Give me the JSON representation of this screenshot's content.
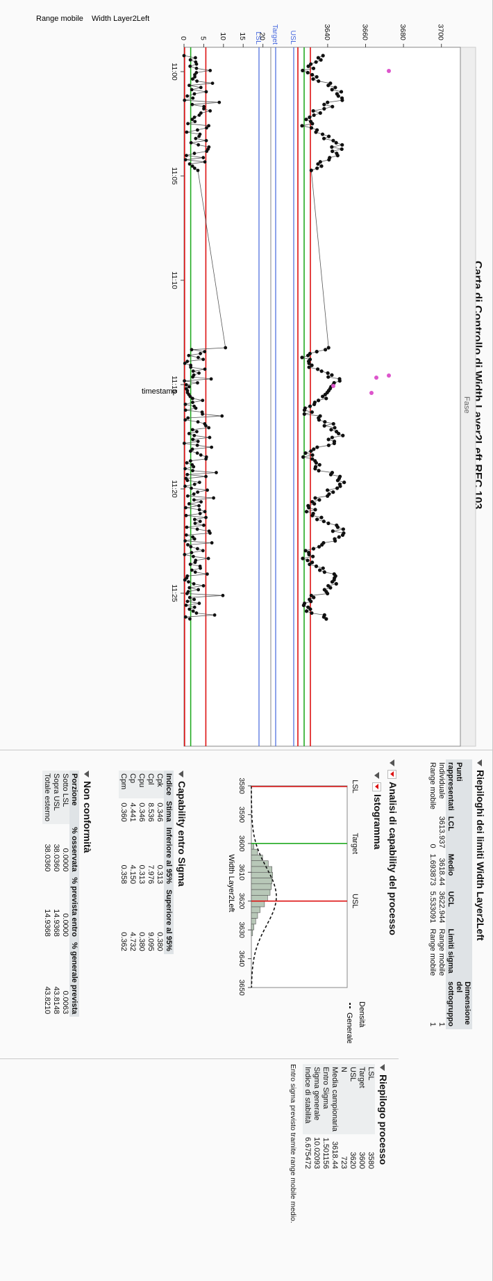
{
  "title": "Carta di Controllo di Width Layer2Left REC 103",
  "top_plot": {
    "label": "Width Layer2Left",
    "yticks": [
      "3640",
      "3660",
      "3680",
      "3700"
    ],
    "ref_labels": {
      "lsl": "LSL",
      "target": "Target",
      "usl": "USL"
    },
    "phase_label": "Fase"
  },
  "bottom_plot": {
    "label": "Range mobile",
    "yticks": [
      "0",
      "5",
      "10",
      "15",
      "20"
    ]
  },
  "x_axis": {
    "label": "timestamp",
    "ticks": [
      "11:00",
      "11:05",
      "11:10",
      "11:15",
      "11:20",
      "11:25"
    ]
  },
  "colors": {
    "ucl_lcl": "#dd1111",
    "center": "#22aa22",
    "spec": "#4466dd",
    "point": "#111111",
    "alarm": "#dd55cc"
  },
  "limits_summary": {
    "title": "Riepiloghi dei limiti Width Layer2Left",
    "headers": [
      "Punti rappresentati",
      "LCL",
      "Medio",
      "UCL",
      "Limiti sigma",
      "Dimensione del sottogruppo"
    ],
    "rows": [
      [
        "Individuale",
        "3613.937",
        "3618.44",
        "3622.944",
        "Range mobile",
        "1"
      ],
      [
        "Range mobile",
        "0",
        "1.693873",
        "5.533091",
        "Range mobile",
        "1"
      ]
    ]
  },
  "capability_analysis": {
    "title": "Analisi di capability del processo",
    "histogram": {
      "title": "Istogramma",
      "xticks": [
        "3580",
        "3590",
        "3600",
        "3610",
        "3620",
        "3630",
        "3640",
        "3650"
      ],
      "xlabel": "Width Layer2Left",
      "ref_labels": {
        "lsl": "LSL",
        "target": "Target",
        "usl": "USL"
      },
      "legend_title": "Densità",
      "legend_item": "Generale"
    },
    "within_sigma": {
      "title": "Capability entro Sigma",
      "headers": [
        "Indice",
        "Stima",
        "Inferiore al 95%",
        "Superiore al 95%"
      ],
      "rows": [
        [
          "Cpk",
          "0.346",
          "0.313",
          "0.380"
        ],
        [
          "Cpl",
          "8.536",
          "7.976",
          "9.095"
        ],
        [
          "Cpu",
          "0.346",
          "0.313",
          "0.380"
        ],
        [
          "Cp",
          "4.441",
          "4.150",
          "4.732"
        ],
        [
          "Cpm",
          "0.360",
          "0.358",
          "0.362"
        ]
      ]
    },
    "nonconformity": {
      "title": "Non conformità",
      "headers": [
        "Porzione",
        "% osservata",
        "% prevista entro",
        "% generale prevista"
      ],
      "rows": [
        [
          "Sotto LSL",
          "0.0000",
          "0.0000",
          "0.0063"
        ],
        [
          "Sopra USL",
          "38.0360",
          "14.9368",
          "43.8148"
        ],
        [
          "Totale esterno",
          "38.0360",
          "14.9368",
          "43.8210"
        ]
      ]
    },
    "process_summary": {
      "title": "Riepilogo processo",
      "rows": [
        [
          "LSL",
          "3580"
        ],
        [
          "Target",
          "3600"
        ],
        [
          "USL",
          "3620"
        ],
        [
          "N",
          "723"
        ],
        [
          "Media campionaria",
          "3618.44"
        ],
        [
          "Entro Sigma",
          "1.501156"
        ],
        [
          "Sigma generale",
          "10.02093"
        ],
        [
          "Indice di stabilità",
          "6.675472"
        ]
      ],
      "note": "Entro sigma previsto tramite range mobile medio."
    }
  }
}
